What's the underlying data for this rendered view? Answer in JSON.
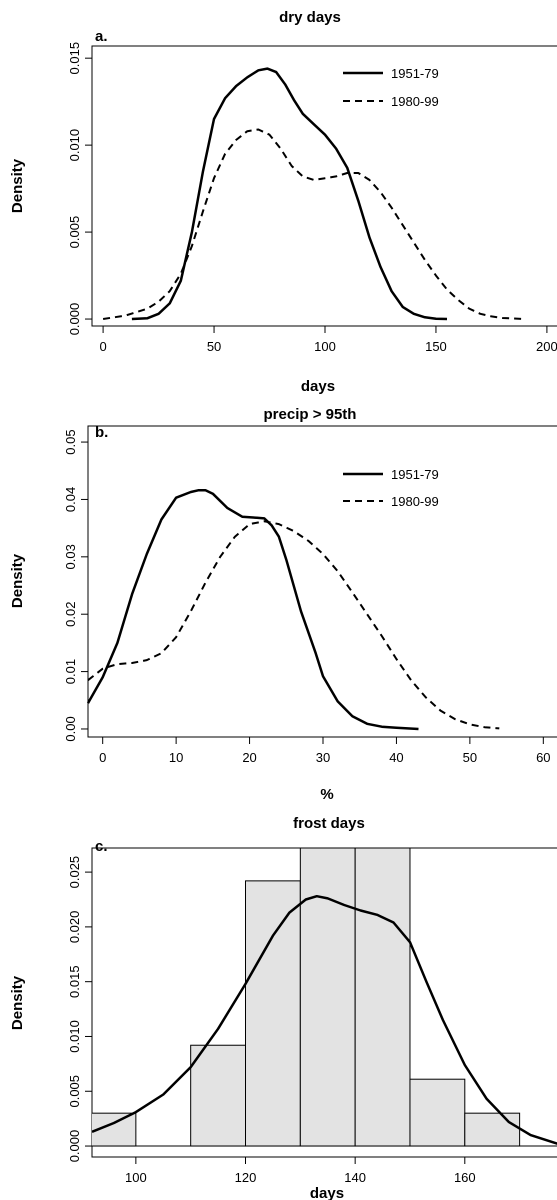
{
  "chart_data": [
    {
      "type": "line",
      "panel_label": "a.",
      "title": "dry days",
      "xlabel": "days",
      "ylabel": "Density",
      "xlim": [
        -5,
        205
      ],
      "ylim": [
        -0.0004,
        0.0157
      ],
      "xticks": [
        {
          "v": 0,
          "label": "0"
        },
        {
          "v": 50,
          "label": "50"
        },
        {
          "v": 100,
          "label": "100"
        },
        {
          "v": 150,
          "label": "150"
        },
        {
          "v": 200,
          "label": "200"
        }
      ],
      "yticks": [
        {
          "v": 0,
          "label": "0.000"
        },
        {
          "v": 0.005,
          "label": "0.005"
        },
        {
          "v": 0.01,
          "label": "0.010"
        },
        {
          "v": 0.015,
          "label": "0.015"
        }
      ],
      "legend_position": "top-right",
      "series": [
        {
          "name": "1951-79",
          "dash": "solid",
          "x": [
            13,
            20,
            25,
            30,
            35,
            40,
            45,
            50,
            55,
            60,
            65,
            70,
            74,
            78,
            82,
            86,
            90,
            95,
            100,
            105,
            110,
            115,
            120,
            125,
            130,
            135,
            140,
            145,
            150,
            155
          ],
          "y": [
            0,
            5e-05,
            0.0003,
            0.0009,
            0.0022,
            0.005,
            0.0085,
            0.0115,
            0.0127,
            0.0134,
            0.0139,
            0.0143,
            0.0144,
            0.0142,
            0.0135,
            0.0126,
            0.0118,
            0.0112,
            0.0106,
            0.0098,
            0.0087,
            0.0068,
            0.0047,
            0.003,
            0.0016,
            0.0007,
            0.0003,
            0.0001,
            2e-05,
            0
          ]
        },
        {
          "name": "1980-99",
          "dash": "dashed",
          "x": [
            0,
            10,
            20,
            25,
            30,
            35,
            40,
            45,
            50,
            55,
            60,
            65,
            70,
            75,
            80,
            85,
            90,
            95,
            100,
            105,
            110,
            115,
            120,
            125,
            130,
            135,
            140,
            145,
            150,
            155,
            160,
            165,
            170,
            175,
            180,
            190
          ],
          "y": [
            0,
            0.0002,
            0.0006,
            0.001,
            0.0016,
            0.0026,
            0.0042,
            0.0062,
            0.0081,
            0.0095,
            0.0103,
            0.0108,
            0.0109,
            0.0106,
            0.0098,
            0.0088,
            0.0082,
            0.008,
            0.0081,
            0.0082,
            0.0084,
            0.0084,
            0.008,
            0.0073,
            0.0064,
            0.0054,
            0.0044,
            0.0034,
            0.0025,
            0.0017,
            0.0011,
            0.0006,
            0.0003,
            0.00015,
            6e-05,
            0
          ]
        }
      ]
    },
    {
      "type": "line",
      "panel_label": "b.",
      "title": "precip > 95th",
      "xlabel": "%",
      "ylabel": "Density",
      "xlim": [
        -2,
        62
      ],
      "ylim": [
        -0.0014,
        0.0528
      ],
      "xticks": [
        {
          "v": 0,
          "label": "0"
        },
        {
          "v": 10,
          "label": "10"
        },
        {
          "v": 20,
          "label": "20"
        },
        {
          "v": 30,
          "label": "30"
        },
        {
          "v": 40,
          "label": "40"
        },
        {
          "v": 50,
          "label": "50"
        },
        {
          "v": 60,
          "label": "60"
        }
      ],
      "yticks": [
        {
          "v": 0,
          "label": "0.00"
        },
        {
          "v": 0.01,
          "label": "0.01"
        },
        {
          "v": 0.02,
          "label": "0.02"
        },
        {
          "v": 0.03,
          "label": "0.03"
        },
        {
          "v": 0.04,
          "label": "0.04"
        },
        {
          "v": 0.05,
          "label": "0.05"
        }
      ],
      "legend_position": "top-right",
      "series": [
        {
          "name": "1951-79",
          "dash": "solid",
          "x": [
            -2,
            0,
            2,
            4,
            6,
            8,
            10,
            12,
            13,
            14,
            15,
            17,
            19,
            21,
            22,
            23,
            24,
            25,
            27,
            29,
            30,
            32,
            34,
            36,
            38,
            40,
            43
          ],
          "y": [
            0.0045,
            0.009,
            0.015,
            0.0235,
            0.0305,
            0.0365,
            0.0403,
            0.0413,
            0.0416,
            0.0416,
            0.041,
            0.0385,
            0.037,
            0.0368,
            0.0367,
            0.0355,
            0.0335,
            0.0295,
            0.0205,
            0.0132,
            0.0092,
            0.0048,
            0.0022,
            0.0009,
            0.0004,
            0.0002,
            0
          ]
        },
        {
          "name": "1980-99",
          "dash": "dashed",
          "x": [
            -2,
            0,
            2,
            4,
            6,
            8,
            10,
            12,
            14,
            16,
            18,
            20,
            22,
            24,
            26,
            28,
            30,
            32,
            34,
            36,
            38,
            40,
            42,
            44,
            46,
            48,
            50,
            52,
            54
          ],
          "y": [
            0.0085,
            0.0105,
            0.0113,
            0.0115,
            0.012,
            0.0132,
            0.016,
            0.0205,
            0.0255,
            0.03,
            0.0335,
            0.0357,
            0.0362,
            0.0357,
            0.0345,
            0.0328,
            0.0305,
            0.0275,
            0.0238,
            0.02,
            0.0162,
            0.0122,
            0.0085,
            0.0055,
            0.0032,
            0.0017,
            0.0008,
            0.0003,
            0.0001
          ]
        }
      ]
    },
    {
      "type": "bar",
      "panel_label": "c.",
      "title": "frost days",
      "xlabel": "days",
      "ylabel": "Density",
      "xlim": [
        92,
        177
      ],
      "ylim": [
        -0.001,
        0.0272
      ],
      "xticks": [
        {
          "v": 100,
          "label": "100"
        },
        {
          "v": 120,
          "label": "120"
        },
        {
          "v": 140,
          "label": "140"
        },
        {
          "v": 160,
          "label": "160"
        }
      ],
      "yticks": [
        {
          "v": 0,
          "label": "0.000"
        },
        {
          "v": 0.005,
          "label": "0.005"
        },
        {
          "v": 0.01,
          "label": "0.010"
        },
        {
          "v": 0.015,
          "label": "0.015"
        },
        {
          "v": 0.02,
          "label": "0.020"
        },
        {
          "v": 0.025,
          "label": "0.025"
        }
      ],
      "bins": [
        {
          "start": 90,
          "end": 100,
          "value": 0.003
        },
        {
          "start": 100,
          "end": 110,
          "value": 0
        },
        {
          "start": 110,
          "end": 120,
          "value": 0.0092
        },
        {
          "start": 120,
          "end": 130,
          "value": 0.0242
        },
        {
          "start": 130,
          "end": 140,
          "value": 0.0272
        },
        {
          "start": 140,
          "end": 150,
          "value": 0.0272
        },
        {
          "start": 150,
          "end": 160,
          "value": 0.0061
        },
        {
          "start": 160,
          "end": 170,
          "value": 0.003
        }
      ],
      "bar_color": "#e3e3e3",
      "density_curve": {
        "x": [
          92,
          96,
          100,
          105,
          110,
          115,
          120,
          125,
          128,
          131,
          133,
          135,
          138,
          141,
          144,
          147,
          150,
          153,
          156,
          160,
          164,
          168,
          172,
          177
        ],
        "y": [
          0.0013,
          0.0021,
          0.0031,
          0.0047,
          0.0072,
          0.0107,
          0.0148,
          0.0192,
          0.0213,
          0.0225,
          0.0228,
          0.0226,
          0.022,
          0.0215,
          0.0211,
          0.0204,
          0.0186,
          0.015,
          0.0115,
          0.0074,
          0.0043,
          0.0022,
          0.001,
          0.0002
        ]
      }
    }
  ]
}
